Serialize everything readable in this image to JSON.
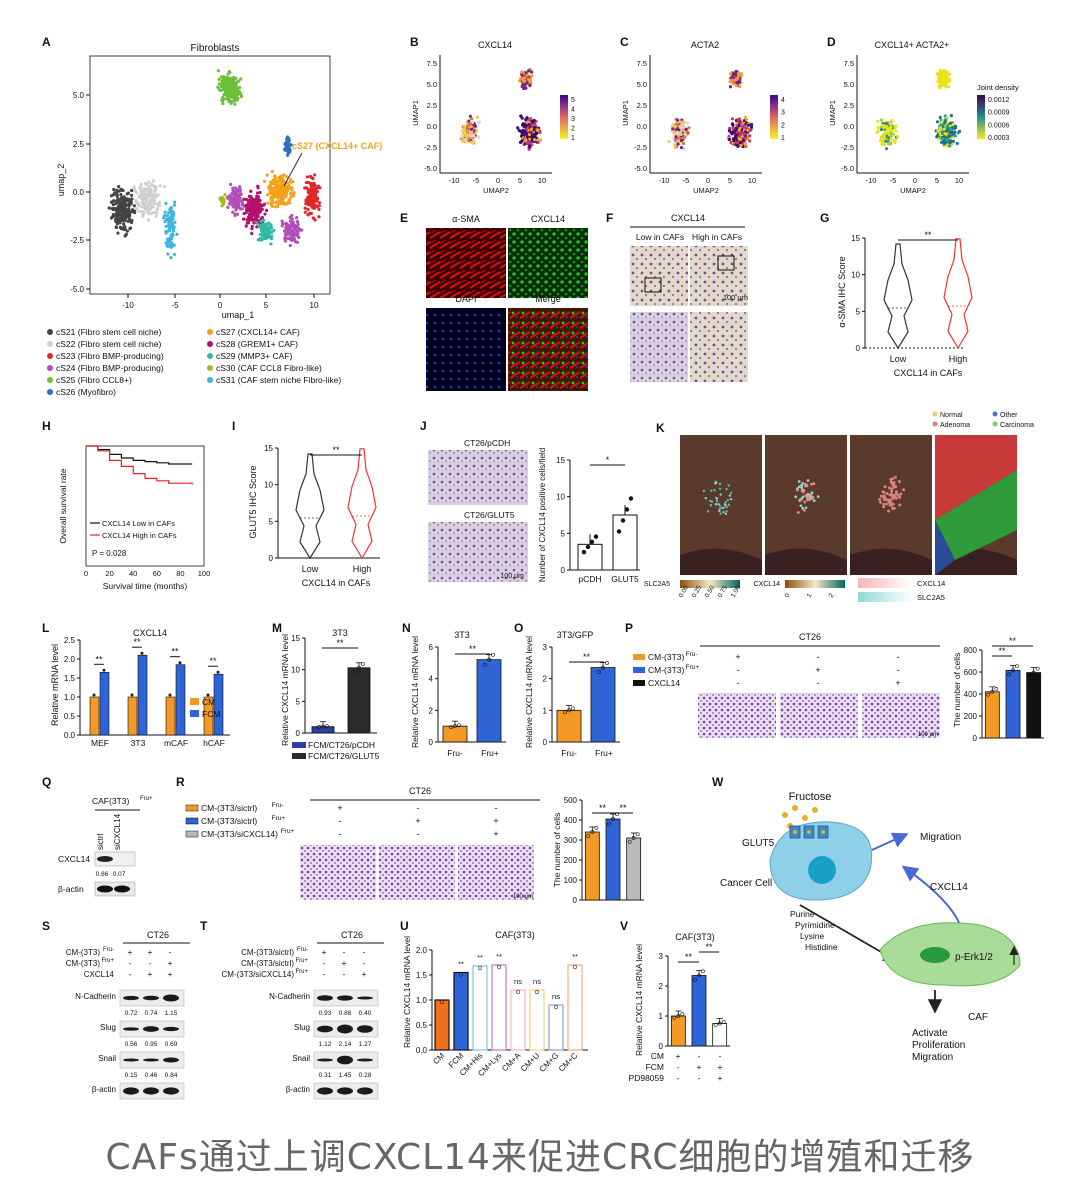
{
  "caption": "CAFs通过上调CXCL14来促进CRC细胞的增殖和迁移",
  "panels": {
    "A": {
      "letter": "A",
      "title": "Fibroblasts",
      "xlabel": "umap_1",
      "ylabel": "umap_2",
      "xticks": [
        "-10",
        "-5",
        "0",
        "5",
        "10"
      ],
      "yticks": [
        "5.0",
        "2.5",
        "0.0",
        "-2.5",
        "-5.0"
      ],
      "annotation": "cS27 (CXCL14+ CAF)",
      "legend": [
        {
          "label": "cS21 (Fibro stem cell niche)",
          "color": "#444444"
        },
        {
          "label": "cS22 (Fibro stem cell niche)",
          "color": "#cfcfcf"
        },
        {
          "label": "cS23 (Fibro BMP-producing)",
          "color": "#e3262a"
        },
        {
          "label": "cS24 (Fibro BMP-producing)",
          "color": "#b24fb8"
        },
        {
          "label": "cS25 (Fibro CCL8+)",
          "color": "#6bbf3a"
        },
        {
          "label": "cS26 (Myofibro)",
          "color": "#2f6fbf"
        },
        {
          "label": "cS27 (CXCL14+ CAF)",
          "color": "#f3a21b"
        },
        {
          "label": "cS28 (GREM1+ CAF)",
          "color": "#b3116a"
        },
        {
          "label": "cS29 (MMP3+ CAF)",
          "color": "#34b9a6"
        },
        {
          "label": "cS30 (CAF CCL8 Fibro-like)",
          "color": "#a7b61c"
        },
        {
          "label": "cS31 (CAF stem niche Fibro-like)",
          "color": "#3fb6e0"
        }
      ]
    },
    "B": {
      "letter": "B",
      "title": "CXCL14",
      "xlabel": "UMAP2",
      "ylabel": "UMAP1",
      "colorbar": [
        "5",
        "4",
        "3",
        "2",
        "1"
      ]
    },
    "C": {
      "letter": "C",
      "title": "ACTA2",
      "xlabel": "UMAP2",
      "ylabel": "UMAP1",
      "colorbar": [
        "4",
        "3",
        "2",
        "1"
      ]
    },
    "D": {
      "letter": "D",
      "title": "CXCL14+ ACTA2+",
      "xlabel": "UMAP2",
      "ylabel": "UMAP1",
      "colorbar_title": "Joint density",
      "colorbar": [
        "0.0012",
        "0.0009",
        "0.0006",
        "0.0003"
      ]
    },
    "BCD_xticks": [
      "-10",
      "-5",
      "0",
      "5",
      "10"
    ],
    "BCD_yticks": [
      "7.5",
      "5.0",
      "2.5",
      "0.0",
      "-2.5",
      "-5.0"
    ],
    "E": {
      "letter": "E",
      "tiles": [
        "α-SMA",
        "CXCL14",
        "DAPI",
        "Merge"
      ]
    },
    "F": {
      "letter": "F",
      "title": "CXCL14",
      "left": "Low in CAFs",
      "right": "High in CAFs",
      "scale": "100 μm"
    },
    "G": {
      "letter": "G",
      "ylabel": "α-SMA IHC Score",
      "xlabel": "CXCL14 in CAFs",
      "groups": [
        "Low",
        "High"
      ],
      "sig": "**",
      "yticks": [
        "0",
        "5",
        "10",
        "15"
      ]
    },
    "H": {
      "letter": "H",
      "ylabel": "Overall survival rate",
      "xlabel": "Survival time (months)",
      "xticks": [
        "0",
        "20",
        "40",
        "60",
        "80",
        "100"
      ],
      "legend": [
        "CXCL14 Low in CAFs",
        "CXCL14 High in CAFs"
      ],
      "pvalue": "P = 0.028"
    },
    "I": {
      "letter": "I",
      "ylabel": "GLUT5 IHC Score",
      "xlabel": "CXCL14 in CAFs",
      "groups": [
        "Low",
        "High"
      ],
      "sig": "**",
      "yticks": [
        "0",
        "5",
        "10",
        "15"
      ]
    },
    "J": {
      "letter": "J",
      "img_top": "CT26/pCDH",
      "img_bottom": "CT26/GLUT5",
      "scale": "100 μm",
      "ylabel": "Number of CXCL14 positive cells/field",
      "groups": [
        "pCDH",
        "GLUT5"
      ],
      "sig": "*",
      "yticks": [
        "0",
        "5",
        "10",
        "15"
      ]
    },
    "K": {
      "letter": "K",
      "legend": [
        "Normal",
        "Other",
        "Adenoma",
        "Carcinoma"
      ],
      "bar1": "SLC2A5",
      "bar1_ticks": [
        "0.00",
        "0.25",
        "0.50",
        "0.75",
        "1.00"
      ],
      "bar2": "CXCL14",
      "bar2_ticks": [
        "0",
        "1",
        "2"
      ],
      "bar3a": "CXCL14",
      "bar3b": "SLC2A5"
    },
    "L": {
      "letter": "L",
      "title": "CXCL14",
      "ylabel": "Relative mRNA level",
      "categories": [
        "MEF",
        "3T3",
        "mCAF",
        "hCAF"
      ],
      "legend": [
        "CM",
        "FCM"
      ],
      "sig": "**",
      "yticks": [
        "0.0",
        "0.5",
        "1.0",
        "1.5",
        "2.0",
        "2.5"
      ]
    },
    "M": {
      "letter": "M",
      "title": "3T3",
      "ylabel": "Relative CXCL14 mRNA level",
      "legend": [
        "FCM/CT26/pCDH",
        "FCM/CT26/GLUT5"
      ],
      "sig": "**",
      "yticks": [
        "0",
        "5",
        "10",
        "15"
      ]
    },
    "N": {
      "letter": "N",
      "title": "3T3",
      "ylabel": "Relative CXCL14 mRNA level",
      "groups": [
        "Fru-",
        "Fru+"
      ],
      "sig": "**",
      "yticks": [
        "0",
        "2",
        "4",
        "6"
      ]
    },
    "O": {
      "letter": "O",
      "title": "3T3/GFP",
      "ylabel": "Relative CXCL14 mRNA level",
      "groups": [
        "Fru-",
        "Fru+"
      ],
      "sig": "**",
      "yticks": [
        "0",
        "1",
        "2",
        "3"
      ]
    },
    "P": {
      "letter": "P",
      "title": "CT26",
      "rows": [
        "CM-(3T3)",
        "CM-(3T3)",
        "CXCL14"
      ],
      "rowsup": [
        "Fru-",
        "Fru+",
        ""
      ],
      "signs": [
        [
          "+",
          "-",
          "-"
        ],
        [
          "-",
          "+",
          "-"
        ],
        [
          "-",
          "-",
          "+"
        ]
      ],
      "ylabel": "The number of cells",
      "yticks": [
        "0",
        "200",
        "400",
        "600",
        "800"
      ],
      "sig": "**",
      "scale": "100 μm"
    },
    "Q": {
      "letter": "Q",
      "title": "CAF(3T3)",
      "titlesup": "Fru+",
      "lanes": [
        "sictrl",
        "siCXCL14"
      ],
      "row1": "CXCL14",
      "row2": "β-actin",
      "values": [
        "0.86",
        "0.07"
      ]
    },
    "R": {
      "letter": "R",
      "title": "CT26",
      "rows": [
        "CM-(3T3/sictrl)",
        "CM-(3T3/sictrl)",
        "CM-(3T3/siCXCL14)"
      ],
      "rowsup": [
        "Fru-",
        "Fru+",
        "Fru+"
      ],
      "signs": [
        [
          "+",
          "-",
          "-"
        ],
        [
          "-",
          "+",
          "+"
        ],
        [
          "-",
          "-",
          "+"
        ]
      ],
      "ylabel": "The number of cells",
      "yticks": [
        "0",
        "100",
        "200",
        "300",
        "400",
        "500"
      ],
      "sig": "**",
      "scale": "100 μm"
    },
    "S": {
      "letter": "S",
      "title": "CT26",
      "conds": [
        "CM-(3T3)",
        "CM-(3T3)",
        "CXCL14"
      ],
      "condsup": [
        "Fru-",
        "Fru+",
        ""
      ],
      "signs": [
        [
          "+",
          "+",
          "-"
        ],
        [
          "-",
          "-",
          "+"
        ],
        [
          "-",
          "+",
          "+"
        ]
      ],
      "bands": [
        {
          "name": "N-Cadherin",
          "vals": [
            "0.72",
            "0.74",
            "1.15"
          ]
        },
        {
          "name": "Slug",
          "vals": [
            "0.56",
            "0.95",
            "0.69"
          ]
        },
        {
          "name": "Snail",
          "vals": [
            "0.15",
            "0.46",
            "0.84"
          ]
        },
        {
          "name": "β-actin",
          "vals": []
        }
      ]
    },
    "T": {
      "letter": "T",
      "title": "CT26",
      "conds": [
        "CM-(3T3/sictrl)",
        "CM-(3T3/sictrl)",
        "CM-(3T3/siCXCL14)"
      ],
      "condsup": [
        "Fru-",
        "Fru+",
        "Fru+"
      ],
      "signs": [
        [
          "+",
          "-",
          "-"
        ],
        [
          "-",
          "+",
          "-"
        ],
        [
          "-",
          "-",
          "+"
        ]
      ],
      "bands": [
        {
          "name": "N-Cadherin",
          "vals": [
            "0.93",
            "0.88",
            "0.40"
          ]
        },
        {
          "name": "Slug",
          "vals": [
            "1.12",
            "2.14",
            "1.27"
          ]
        },
        {
          "name": "Snail",
          "vals": [
            "0.31",
            "1.45",
            "0.28"
          ]
        },
        {
          "name": "β-actin",
          "vals": []
        }
      ]
    },
    "U": {
      "letter": "U",
      "title": "CAF(3T3)",
      "ylabel": "Relative CXCL14 mRNA level",
      "categories": [
        "CM",
        "FCM",
        "CM+His",
        "CM+Lys",
        "CM+A",
        "CM+U",
        "CM+G",
        "CM+C"
      ],
      "sigs": [
        "",
        "**",
        "**",
        "**",
        "ns",
        "ns",
        "ns",
        "**"
      ],
      "yticks": [
        "0.0",
        "0.5",
        "1.0",
        "1.5",
        "2.0"
      ]
    },
    "V": {
      "letter": "V",
      "title": "CAF(3T3)",
      "ylabel": "Relative CXCL14 mRNA level",
      "yticks": [
        "0",
        "1",
        "2",
        "3"
      ],
      "rows": [
        "CM",
        "FCM",
        "PD98059"
      ],
      "signs": [
        [
          "+",
          "-",
          "-"
        ],
        [
          "-",
          "+",
          "+"
        ],
        [
          "-",
          "-",
          "+"
        ]
      ],
      "sig": "**"
    },
    "W": {
      "letter": "W",
      "fructose": "Fructose",
      "glut5": "GLUT5",
      "cancer": "Cancer Cell",
      "migration": "Migration",
      "cxcl14": "CXCL14",
      "nutrients": [
        "Purine",
        "Pyrimidine",
        "Lysine",
        "Histidine"
      ],
      "erk": "p-Erk1/2",
      "caf": "CAF",
      "outcome": [
        "Activate",
        "Proliferation",
        "Migration"
      ]
    }
  },
  "chart_data": [
    {
      "type": "bar",
      "panel": "L",
      "title": "CXCL14",
      "ylabel": "Relative mRNA level",
      "categories": [
        "MEF",
        "3T3",
        "mCAF",
        "hCAF"
      ],
      "series": [
        {
          "name": "CM",
          "values": [
            1.0,
            1.0,
            1.0,
            1.0
          ]
        },
        {
          "name": "FCM",
          "values": [
            1.65,
            2.1,
            1.85,
            1.6
          ]
        }
      ],
      "ylim": [
        0,
        2.5
      ]
    },
    {
      "type": "bar",
      "panel": "M",
      "title": "3T3",
      "ylabel": "Relative CXCL14 mRNA level",
      "categories": [
        "FCM/CT26/pCDH",
        "FCM/CT26/GLUT5"
      ],
      "values": [
        1.0,
        10.3
      ],
      "ylim": [
        0,
        15
      ]
    },
    {
      "type": "bar",
      "panel": "N",
      "title": "3T3",
      "ylabel": "Relative CXCL14 mRNA level",
      "categories": [
        "Fru-",
        "Fru+"
      ],
      "values": [
        1.0,
        5.2
      ],
      "ylim": [
        0,
        6
      ]
    },
    {
      "type": "bar",
      "panel": "O",
      "title": "3T3/GFP",
      "ylabel": "Relative CXCL14 mRNA level",
      "categories": [
        "Fru-",
        "Fru+"
      ],
      "values": [
        1.0,
        2.35
      ],
      "ylim": [
        0,
        3
      ]
    },
    {
      "type": "bar",
      "panel": "P",
      "ylabel": "The number of cells",
      "categories": [
        "1",
        "2",
        "3"
      ],
      "values": [
        420,
        615,
        595
      ],
      "ylim": [
        0,
        800
      ]
    },
    {
      "type": "bar",
      "panel": "R",
      "ylabel": "The number of cells",
      "categories": [
        "1",
        "2",
        "3"
      ],
      "values": [
        340,
        405,
        310
      ],
      "ylim": [
        0,
        500
      ]
    },
    {
      "type": "bar",
      "panel": "U",
      "title": "CAF(3T3)",
      "ylabel": "Relative CXCL14 mRNA level",
      "categories": [
        "CM",
        "FCM",
        "CM+His",
        "CM+Lys",
        "CM+A",
        "CM+U",
        "CM+G",
        "CM+C"
      ],
      "values": [
        1.0,
        1.55,
        1.68,
        1.7,
        1.2,
        1.2,
        0.9,
        1.7
      ],
      "ylim": [
        0,
        2.0
      ]
    },
    {
      "type": "bar",
      "panel": "V",
      "title": "CAF(3T3)",
      "ylabel": "Relative CXCL14 mRNA level",
      "categories": [
        "1",
        "2",
        "3"
      ],
      "values": [
        1.0,
        2.35,
        0.75
      ],
      "ylim": [
        0,
        3
      ]
    },
    {
      "type": "bar",
      "panel": "J",
      "ylabel": "Number of CXCL14 positive cells/field",
      "categories": [
        "pCDH",
        "GLUT5"
      ],
      "values": [
        3.5,
        7.5
      ],
      "ylim": [
        0,
        15
      ]
    },
    {
      "type": "line",
      "panel": "H",
      "xlabel": "Survival time (months)",
      "ylabel": "Overall survival rate",
      "series": [
        {
          "name": "CXCL14 Low in CAFs",
          "x": [
            0,
            10,
            20,
            30,
            40,
            50,
            60,
            70,
            90
          ],
          "y": [
            1.0,
            0.97,
            0.93,
            0.9,
            0.88,
            0.87,
            0.86,
            0.85,
            0.85
          ]
        },
        {
          "name": "CXCL14 High in CAFs",
          "x": [
            0,
            10,
            20,
            30,
            40,
            50,
            60,
            70,
            90
          ],
          "y": [
            1.0,
            0.96,
            0.88,
            0.83,
            0.77,
            0.73,
            0.71,
            0.69,
            0.68
          ]
        }
      ],
      "xlim": [
        0,
        100
      ]
    }
  ]
}
